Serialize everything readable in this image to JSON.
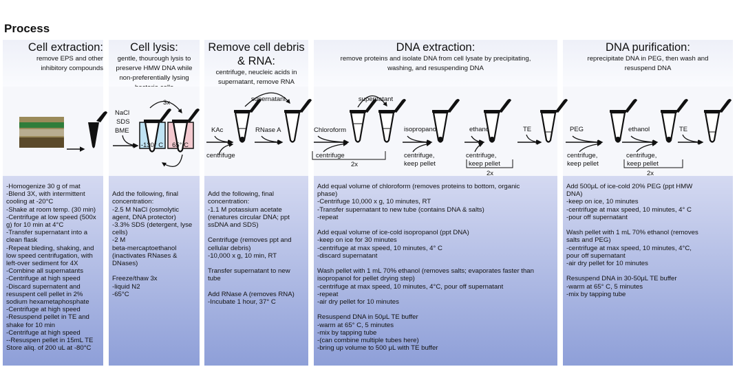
{
  "title": "Process",
  "columns": [
    {
      "title": "Cell extraction:",
      "subtitle": [
        "remove EPS and other",
        "inhibitory compounds"
      ],
      "text": [
        "-Homogenize 30 g of mat",
        "-Blend 3X, with intermittent",
        "  cooling at -20°C",
        "-Shake at room temp. (30 min)",
        "-Centrifuge at low speed (500x",
        "g)  for 10 min at 4°C",
        "-Transfer supernatant into a",
        "  clean flask",
        "-Repeat bleding, shaking, and",
        "  low speed centrifugation, with",
        "  left-over sediment for 4X",
        "-Combine all supernatants",
        "-Centrifuge at high speed",
        "-Discard supernatent and",
        "  resuspent cell pellet in 2%",
        "  sodium hexametaphosphate",
        "-Centrifuge at high speed",
        "-Resuspend pellet in TE and",
        "    shake for 10 min",
        "-Centrifuge at high speed",
        "--Resuspen pellet in 15mL TE",
        "Store aliq. of 200 uL at -80°C"
      ]
    },
    {
      "title": "Cell lysis:",
      "subtitle": [
        "gentle, thourough lysis to",
        "preserve HMW DNA while",
        "non-preferentially lysing",
        "bacteria cells"
      ],
      "text": [
        "",
        "Add the following, final",
        "concentration:",
        "-2.5 M NaCl (osmolytic",
        "agent, DNA protector)",
        "-3.3% SDS (detergent, lyse",
        "cells)",
        "-2 M",
        "beta-mercaptoethanol",
        "(inactivates RNases &",
        "DNases)",
        "",
        "Freeze/thaw 3x",
        "-liquid N2",
        "-65°C"
      ]
    },
    {
      "title": "Remove cell debris",
      "title2": "& RNA:",
      "subtitle": [
        "centrifuge, neucleic acids in",
        "supernatant, remove RNA"
      ],
      "text": [
        "",
        "Add the following, final",
        "concentration:",
        "-1.1 M potassium acetate",
        "(renatures circular DNA; ppt",
        "ssDNA and SDS)",
        "",
        "Centrifuge (removes ppt and",
        "cellular debris)",
        "-10,000 x g, 10 min, RT",
        "",
        "Transfer supernatant to new",
        "tube",
        "",
        "Add RNase A (removes RNA)",
        "-Incubate 1 hour, 37° C"
      ]
    },
    {
      "title": "DNA extraction:",
      "subtitle": [
        "remove proteins and isolate DNA from cell lysate by precipitating,",
        "washing, and resuspending DNA"
      ],
      "text": [
        "Add equal volume of chloroform (removes proteins to bottom, organic",
        "phase)",
        "-Centrifuge 10,000 x g, 10 minutes, RT",
        "-Transfer supernatant to new tube (contains DNA & salts)",
        "-repeat",
        "",
        "Add equal volume of ice-cold isopropanol (ppt DNA)",
        "-keep on ice for 30 minutes",
        "-centrifuge at max speed, 10 minutes, 4° C",
        "-discard supernatant",
        "",
        "Wash pellet with 1 mL 70% ethanol (removes salts; evaporates faster than",
        "isopropanol for pellet drying step)",
        "-centrifuge at max speed, 10 minutes, 4°C, pour off supernatant",
        "-repeat",
        "-air dry pellet for 10 minutes",
        "",
        "Resuspend DNA in 50μL TE buffer",
        "-warm at 65° C, 5 minutes",
        "-mix by tapping tube",
        "-(can combine multiple tubes here)",
        "-bring up volume to 500 μL with TE buffer"
      ]
    },
    {
      "title": "DNA purification:",
      "subtitle": [
        "reprecipitate DNA in PEG, then wash and",
        "resuspend DNA"
      ],
      "text": [
        "Add 500μL of ice-cold 20% PEG (ppt HMW",
        "DNA)",
        "-keep on ice, 10 minutes",
        "-centrifuge at max speed, 10 minutes, 4° C",
        "-pour off supernatant",
        "",
        "Wash pellet with 1 mL 70% ethanol (removes",
        "salts and PEG)",
        "-centrifuge at max speed, 10 minutes, 4°C,",
        "pour off supernatant",
        "-air dry pellet for 10 minutes",
        "",
        "Resuspend DNA in 30-50μL TE buffer",
        "-warm at 65° C, 5 minutes",
        "-mix by tapping tube"
      ]
    }
  ],
  "labels": {
    "nacl": "NaCl",
    "sds": "SDS",
    "bme": "BME",
    "three_x": "3x",
    "cold": "-130° C",
    "hot": "65° C",
    "kac": "KAc",
    "centrifuge": "centrifuge",
    "supernatant": "supernatant",
    "rnase": "RNase A",
    "chloroform": "Chloroform",
    "two_x": "2x",
    "isopropanol": "isopropanol",
    "centrifuge_c": "centrifuge,",
    "keep_pellet": "keep pellet",
    "ethanol": "ethanol",
    "te": "TE",
    "peg": "PEG"
  },
  "colors": {
    "cold_bath": "#bfe3f3",
    "hot_bath": "#f3c9cf",
    "panel_top": "#d4d9f1",
    "panel_bottom": "#8e9fd8"
  }
}
